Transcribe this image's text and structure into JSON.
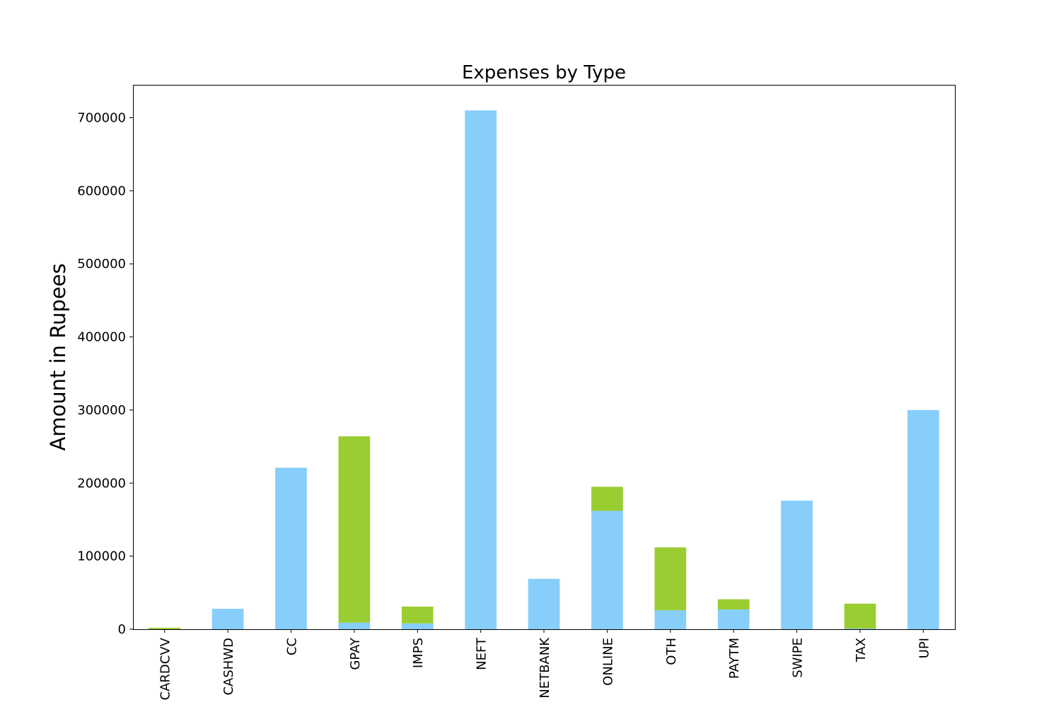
{
  "chart_data": {
    "type": "bar",
    "stacked": true,
    "title": "Expenses by Type",
    "xlabel": "",
    "ylabel": "Amount in Rupees",
    "ylim": [
      0,
      745000
    ],
    "yticks": [
      0,
      100000,
      200000,
      300000,
      400000,
      500000,
      600000,
      700000
    ],
    "grid": false,
    "legend": "none",
    "categories": [
      "CARDCVV",
      "CASHWD",
      "CC",
      "GPAY",
      "IMPS",
      "NEFT",
      "NETBANK",
      "ONLINE",
      "OTH",
      "PAYTM",
      "SWIPE",
      "TAX",
      "UPI"
    ],
    "series": [
      {
        "name": "series-1",
        "color": "#87CEFA",
        "values": [
          0,
          28000,
          221000,
          9000,
          8000,
          710000,
          69000,
          162000,
          26000,
          27000,
          176000,
          1000,
          300000
        ]
      },
      {
        "name": "series-2",
        "color": "#9ACD32",
        "values": [
          2000,
          0,
          0,
          255000,
          23000,
          0,
          0,
          33000,
          86000,
          14000,
          0,
          34000,
          0
        ]
      }
    ]
  }
}
